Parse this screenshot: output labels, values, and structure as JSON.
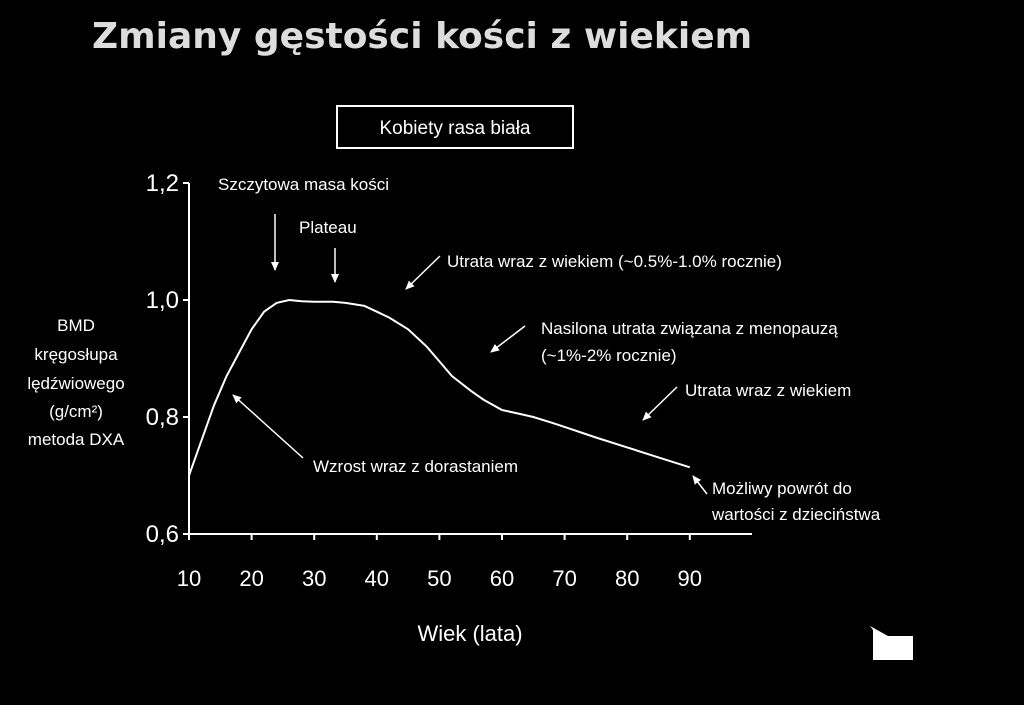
{
  "slide": {
    "title": "Zmiany gęstości kości z wiekiem"
  },
  "chart_data": {
    "type": "line",
    "title": "Zmiany gęstości kości z wiekiem",
    "legend": "Kobiety rasa biała",
    "xlabel": "Wiek (lata)",
    "ylabel_lines": [
      "BMD",
      "kręgosłupa",
      "lędźwiowego",
      "(g/cm²)",
      "metoda DXA"
    ],
    "xlim": [
      10,
      100
    ],
    "ylim": [
      0.6,
      1.2
    ],
    "x_ticks": [
      10,
      20,
      30,
      40,
      50,
      60,
      70,
      80,
      90
    ],
    "x_tick_labels": [
      "10",
      "20",
      "30",
      "40",
      "50",
      "60",
      "70",
      "80",
      "90"
    ],
    "y_ticks": [
      0.6,
      0.8,
      1.0,
      1.2
    ],
    "y_tick_labels": [
      "0,6",
      "0,8",
      "1,0",
      "1,2"
    ],
    "series": [
      {
        "x": [
          10,
          12,
          14,
          16,
          18,
          20,
          22,
          24,
          26,
          28,
          30,
          33,
          35,
          38,
          40,
          42,
          45,
          48,
          50,
          52,
          55,
          57,
          60,
          63,
          65,
          68,
          70,
          75,
          80,
          85,
          90
        ],
        "y": [
          0.7,
          0.76,
          0.82,
          0.87,
          0.91,
          0.95,
          0.98,
          0.995,
          1.0,
          0.998,
          0.997,
          0.997,
          0.995,
          0.99,
          0.98,
          0.97,
          0.95,
          0.92,
          0.895,
          0.87,
          0.845,
          0.83,
          0.812,
          0.805,
          0.8,
          0.79,
          0.783,
          0.765,
          0.748,
          0.731,
          0.714
        ]
      }
    ],
    "annotations": [
      {
        "text": "Szczytowa masa kości"
      },
      {
        "text": "Plateau"
      },
      {
        "text": "Utrata wraz z wiekiem (~0.5%-1.0% rocznie)"
      },
      {
        "text": "Nasilona utrata związana z menopauzą"
      },
      {
        "text": "(~1%-2% rocznie)"
      },
      {
        "text": "Utrata wraz z wiekiem"
      },
      {
        "text": "Wzrost wraz z dorastaniem"
      },
      {
        "text": "Możliwy powrót do"
      },
      {
        "text": "wartości z dzieciństwa"
      }
    ]
  }
}
